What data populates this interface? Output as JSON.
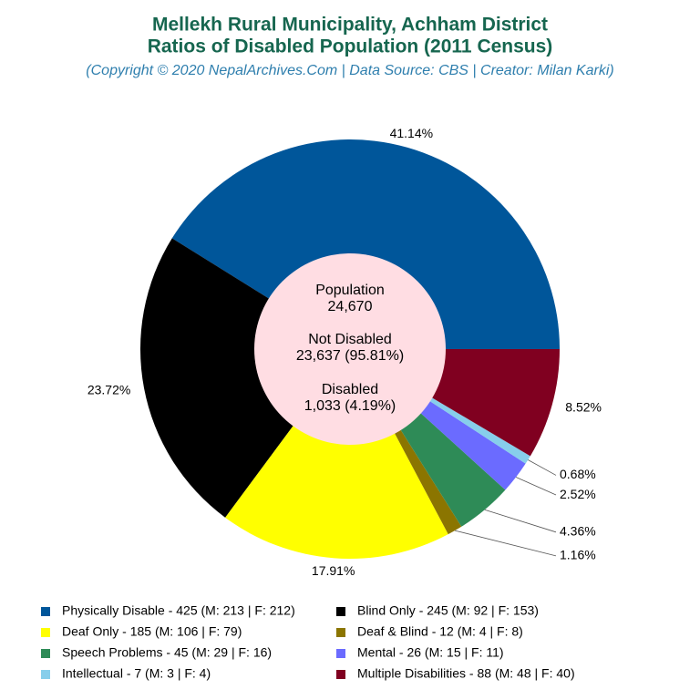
{
  "chart_data": {
    "type": "donut",
    "title": [
      "Mellekh Rural Municipality, Achham District",
      "Ratios of Disabled Population (2011 Census)"
    ],
    "subtitle": "(Copyright © 2020 NepalArchives.Com | Data Source: CBS | Creator: Milan Karki)",
    "center_labels": [
      "Population",
      "24,670",
      "Not Disabled",
      "23,637 (95.81%)",
      "Disabled",
      "1,033 (4.19%)"
    ],
    "categories": [
      "Physically Disable - 425 (M: 213 | F: 212)",
      "Blind Only - 245 (M: 92 | F: 153)",
      "Deaf Only - 185 (M: 106 | F: 79)",
      "Deaf & Blind - 12 (M: 4 | F: 8)",
      "Speech Problems - 45 (M: 29 | F: 16)",
      "Mental - 26 (M: 15 | F: 11)",
      "Intellectual - 7 (M: 3 | F: 4)",
      "Multiple Disabilities - 88 (M: 48 | F: 40)"
    ],
    "values": [
      41.14,
      23.72,
      17.91,
      1.16,
      4.36,
      2.52,
      0.68,
      8.52
    ],
    "value_labels": [
      "41.14%",
      "23.72%",
      "17.91%",
      "1.16%",
      "4.36%",
      "2.52%",
      "0.68%",
      "8.52%"
    ],
    "colors": [
      "#00569a",
      "#000000",
      "#ffff00",
      "#8b7500",
      "#2e8b57",
      "#6b6bff",
      "#87ceeb",
      "#800020"
    ],
    "center_color": "#ffdde3"
  }
}
